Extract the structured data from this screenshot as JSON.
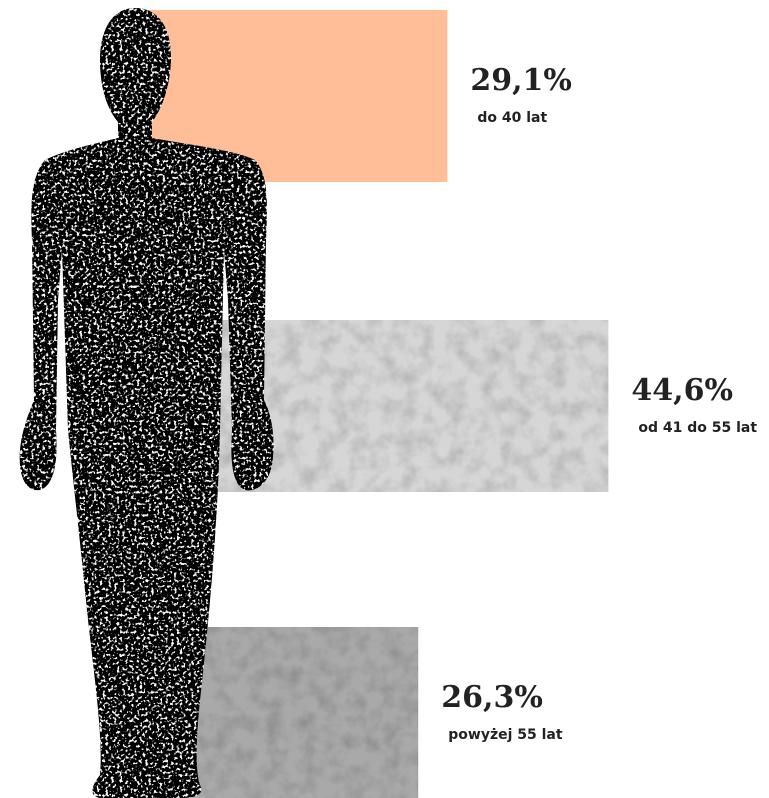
{
  "chart_data": {
    "type": "bar",
    "orientation": "horizontal",
    "categories": [
      "do 40 lat",
      "od 41 do 55 lat",
      "powyżej 55 lat"
    ],
    "values": [
      29.1,
      44.6,
      26.3
    ],
    "value_labels": [
      "29,1%",
      "44,6%",
      "26,3%"
    ],
    "colors": [
      "#ffbe98",
      "#d6d6d6",
      "#a9a9a9"
    ]
  }
}
